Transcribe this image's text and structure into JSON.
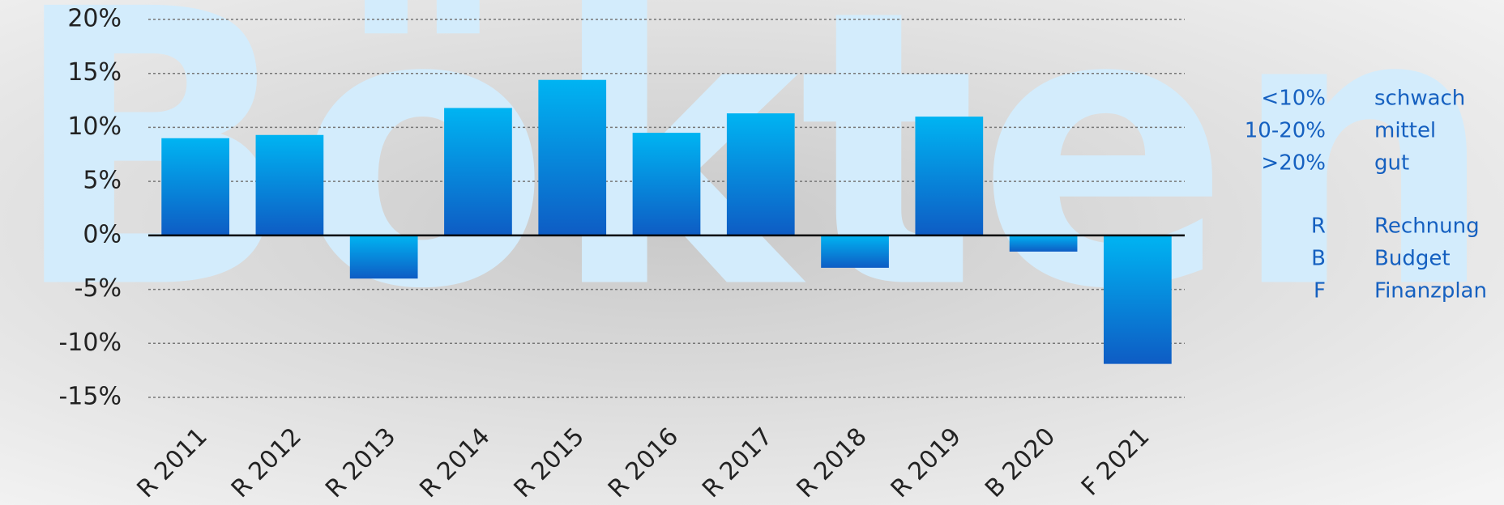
{
  "chart_data": {
    "type": "bar",
    "watermark": "Bökten",
    "categories": [
      "R 2011",
      "R 2012",
      "R 2013",
      "R 2014",
      "R 2015",
      "R 2016",
      "R 2017",
      "R 2018",
      "R 2019",
      "B 2020",
      "F 2021"
    ],
    "values": [
      9,
      9.3,
      -4,
      11.8,
      14.4,
      9.5,
      11.3,
      -3,
      11,
      -1.5,
      -11.9
    ],
    "color": [
      "#00b4f2",
      "#0e5cc4"
    ],
    "ylim": [
      -15,
      20
    ],
    "yticks": [
      {
        "value": -15,
        "label": "-15%"
      },
      {
        "value": -10,
        "label": "-10%"
      },
      {
        "value": -5,
        "label": "-5%"
      },
      {
        "value": 0,
        "label": "0%"
      },
      {
        "value": 5,
        "label": "5%"
      },
      {
        "value": 10,
        "label": "10%"
      },
      {
        "value": 15,
        "label": "15%"
      },
      {
        "value": 20,
        "label": "20%"
      }
    ],
    "grid": true,
    "notes": [
      {
        "key": "<10%",
        "text": "schwach"
      },
      {
        "key": "10-20%",
        "text": "mittel"
      },
      {
        "key": ">20%",
        "text": "gut"
      },
      {
        "key": "R",
        "text": "Rechnung"
      },
      {
        "key": "B",
        "text": "Budget"
      },
      {
        "key": "F",
        "text": "Finanzplan"
      }
    ]
  }
}
